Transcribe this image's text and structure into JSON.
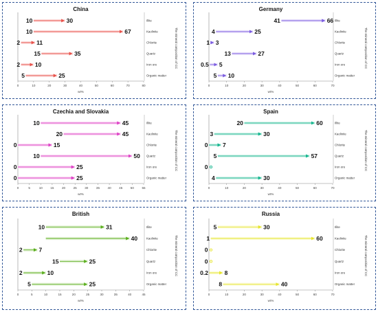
{
  "figure": {
    "categories": [
      "Illite",
      "Kaolinite",
      "Chlorite",
      "Quartz",
      "Iron ore",
      "Organic matter"
    ],
    "side_label": "The mineral composition of CC",
    "xlabel": "wt%"
  },
  "chart_data": [
    {
      "type": "range-arrow",
      "title": "China",
      "color": "#e8524a",
      "highlight": "#fde3e3",
      "categories": [
        "Illite",
        "Kaolinite",
        "Chlorite",
        "Quartz",
        "Iron ore",
        "Organic matter"
      ],
      "xlim": [
        0,
        80
      ],
      "xticks": [
        "0",
        "10",
        "20",
        "30",
        "40",
        "50",
        "60",
        "70",
        "80"
      ],
      "xlabel": "wt%",
      "side_label": "The mineral composition of CC",
      "ranges": [
        [
          10,
          30
        ],
        [
          10,
          67
        ],
        [
          2,
          11
        ],
        [
          15,
          35
        ],
        [
          2,
          10
        ],
        [
          5,
          25
        ]
      ],
      "labels": [
        [
          "10",
          "30"
        ],
        [
          "10",
          "67"
        ],
        [
          "2",
          "11"
        ],
        [
          "15",
          "35"
        ],
        [
          "2",
          "10"
        ],
        [
          "5",
          "25"
        ]
      ]
    },
    {
      "type": "range-arrow",
      "title": "Germany",
      "color": "#7b5ce0",
      "highlight": "#ece6fb",
      "categories": [
        "Illite",
        "Kaolinite",
        "Chlorite",
        "Quartz",
        "Iron ore",
        "Organic matter"
      ],
      "xlim": [
        0,
        70
      ],
      "xticks": [
        "0",
        "10",
        "20",
        "30",
        "40",
        "50",
        "60",
        "70"
      ],
      "xlabel": "wt%",
      "side_label": "The mineral composition of CC",
      "ranges": [
        [
          41,
          66
        ],
        [
          4,
          25
        ],
        [
          1,
          3
        ],
        [
          13,
          27
        ],
        [
          0.5,
          5
        ],
        [
          5,
          10
        ]
      ],
      "labels": [
        [
          "41",
          "66"
        ],
        [
          "4",
          "25"
        ],
        [
          "1",
          "3"
        ],
        [
          "13",
          "27"
        ],
        [
          "0.5",
          "5"
        ],
        [
          "5",
          "10"
        ]
      ]
    },
    {
      "type": "range-arrow",
      "title": "Czechia and Slovakia",
      "color": "#dd3fc4",
      "highlight": "#fbe1f6",
      "categories": [
        "Illite",
        "Kaolinite",
        "Chlorite",
        "Quartz",
        "Iron ore",
        "Organic matter"
      ],
      "xlim": [
        0,
        55
      ],
      "xticks": [
        "0",
        "5",
        "10",
        "15",
        "20",
        "25",
        "30",
        "35",
        "40",
        "45",
        "50",
        "55"
      ],
      "xlabel": "wt%",
      "side_label": "The mineral composition of CC",
      "ranges": [
        [
          10,
          45
        ],
        [
          20,
          45
        ],
        [
          0,
          15
        ],
        [
          10,
          50
        ],
        [
          0,
          25
        ],
        [
          0,
          25
        ]
      ],
      "labels": [
        [
          "10",
          "45"
        ],
        [
          "20",
          "45"
        ],
        [
          "0",
          "15"
        ],
        [
          "10",
          "50"
        ],
        [
          "0",
          "25"
        ],
        [
          "0",
          "25"
        ]
      ]
    },
    {
      "type": "range-arrow",
      "title": "Spain",
      "color": "#13b58e",
      "highlight": "#def5ee",
      "categories": [
        "Illite",
        "Kaolinite",
        "Chlorite",
        "Quartz",
        "Iron ore",
        "Organic matter"
      ],
      "xlim": [
        0,
        70
      ],
      "xticks": [
        "0",
        "10",
        "20",
        "30",
        "40",
        "50",
        "60",
        "70"
      ],
      "xlabel": "wt%",
      "side_label": "The mineral composition of CC",
      "ranges": [
        [
          20,
          60
        ],
        [
          3,
          30
        ],
        [
          0,
          7
        ],
        [
          5,
          57
        ],
        [
          0,
          0
        ],
        [
          4,
          30
        ]
      ],
      "labels": [
        [
          "20",
          "60"
        ],
        [
          "3",
          "30"
        ],
        [
          "0",
          "7"
        ],
        [
          "5",
          "57"
        ],
        [
          "0",
          ""
        ],
        [
          "4",
          "30"
        ]
      ]
    },
    {
      "type": "range-arrow",
      "title": "British",
      "color": "#5aae1e",
      "highlight": "#e6f3da",
      "categories": [
        "Illite",
        "Kaolinite",
        "Chlorite",
        "Quartz",
        "Iron ore",
        "Organic matter"
      ],
      "xlim": [
        0,
        45
      ],
      "xticks": [
        "0",
        "5",
        "10",
        "15",
        "20",
        "25",
        "30",
        "35",
        "40",
        "45"
      ],
      "xlabel": "wt%",
      "side_label": "The mineral composition of CC",
      "ranges": [
        [
          10,
          31
        ],
        [
          10,
          40
        ],
        [
          2,
          7
        ],
        [
          15,
          25
        ],
        [
          2,
          10
        ],
        [
          5,
          25
        ]
      ],
      "labels": [
        [
          "10",
          "31"
        ],
        [
          "",
          "40"
        ],
        [
          "2",
          "7"
        ],
        [
          "15",
          "25"
        ],
        [
          "2",
          "10"
        ],
        [
          "5",
          "25"
        ]
      ]
    },
    {
      "type": "range-arrow",
      "title": "Russia",
      "color": "#e6e42c",
      "highlight": "#fbfbd9",
      "categories": [
        "Illite",
        "Kaolinite",
        "Chlorite",
        "Quartz",
        "Iron ore",
        "Organic matter"
      ],
      "xlim": [
        0,
        70
      ],
      "xticks": [
        "0",
        "10",
        "20",
        "30",
        "40",
        "50",
        "60",
        "70"
      ],
      "xlabel": "wt%",
      "side_label": "The mineral composition of CC",
      "ranges": [
        [
          5,
          30
        ],
        [
          1,
          60
        ],
        [
          0,
          0
        ],
        [
          0,
          0
        ],
        [
          0.2,
          8
        ],
        [
          8,
          40
        ]
      ],
      "labels": [
        [
          "5",
          "30"
        ],
        [
          "1",
          "60"
        ],
        [
          "0",
          ""
        ],
        [
          "0",
          ""
        ],
        [
          "0.2",
          "8"
        ],
        [
          "8",
          "40"
        ]
      ]
    }
  ]
}
